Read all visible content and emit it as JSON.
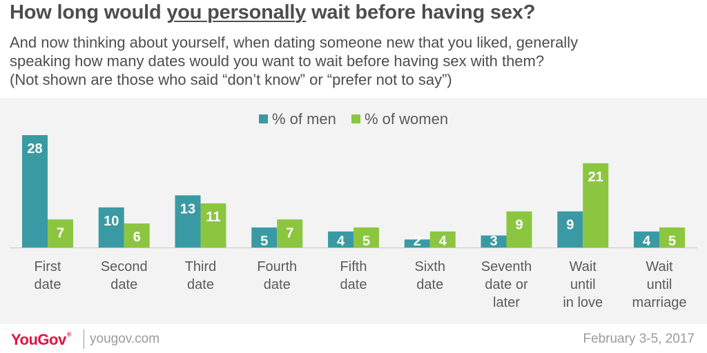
{
  "header": {
    "title_before": "How long would ",
    "title_highlight": "you personally",
    "title_after": " wait before having sex?",
    "subtitle_line1": "And now thinking about yourself, when dating someone new that you liked, generally",
    "subtitle_line2": "speaking how many dates would you want to wait before having sex with them?",
    "subtitle_line3": "(Not shown are those who said “don’t know” or “prefer not to say”)"
  },
  "legend": [
    {
      "label": "% of men",
      "color": "#3a9aa3"
    },
    {
      "label": "% of women",
      "color": "#8cc640"
    }
  ],
  "chart_data": {
    "type": "bar",
    "categories": [
      [
        "First",
        "date"
      ],
      [
        "Second",
        "date"
      ],
      [
        "Third",
        "date"
      ],
      [
        "Fourth",
        "date"
      ],
      [
        "Fifth",
        "date"
      ],
      [
        "Sixth",
        "date"
      ],
      [
        "Seventh",
        "date or",
        "later"
      ],
      [
        "Wait",
        "until",
        "in love"
      ],
      [
        "Wait",
        "until",
        "marriage"
      ]
    ],
    "series": [
      {
        "name": "% of men",
        "color": "#3a9aa3",
        "values": [
          28,
          10,
          13,
          5,
          4,
          2,
          3,
          9,
          4
        ]
      },
      {
        "name": "% of women",
        "color": "#8cc640",
        "values": [
          7,
          6,
          11,
          7,
          5,
          4,
          9,
          21,
          5
        ]
      }
    ],
    "ylim": [
      0,
      28
    ],
    "grid": false,
    "legend_position": "top-center"
  },
  "footer": {
    "logo": "YouGov",
    "logo_mark": "®",
    "website": "yougov.com",
    "date": "February 3-5, 2017"
  }
}
